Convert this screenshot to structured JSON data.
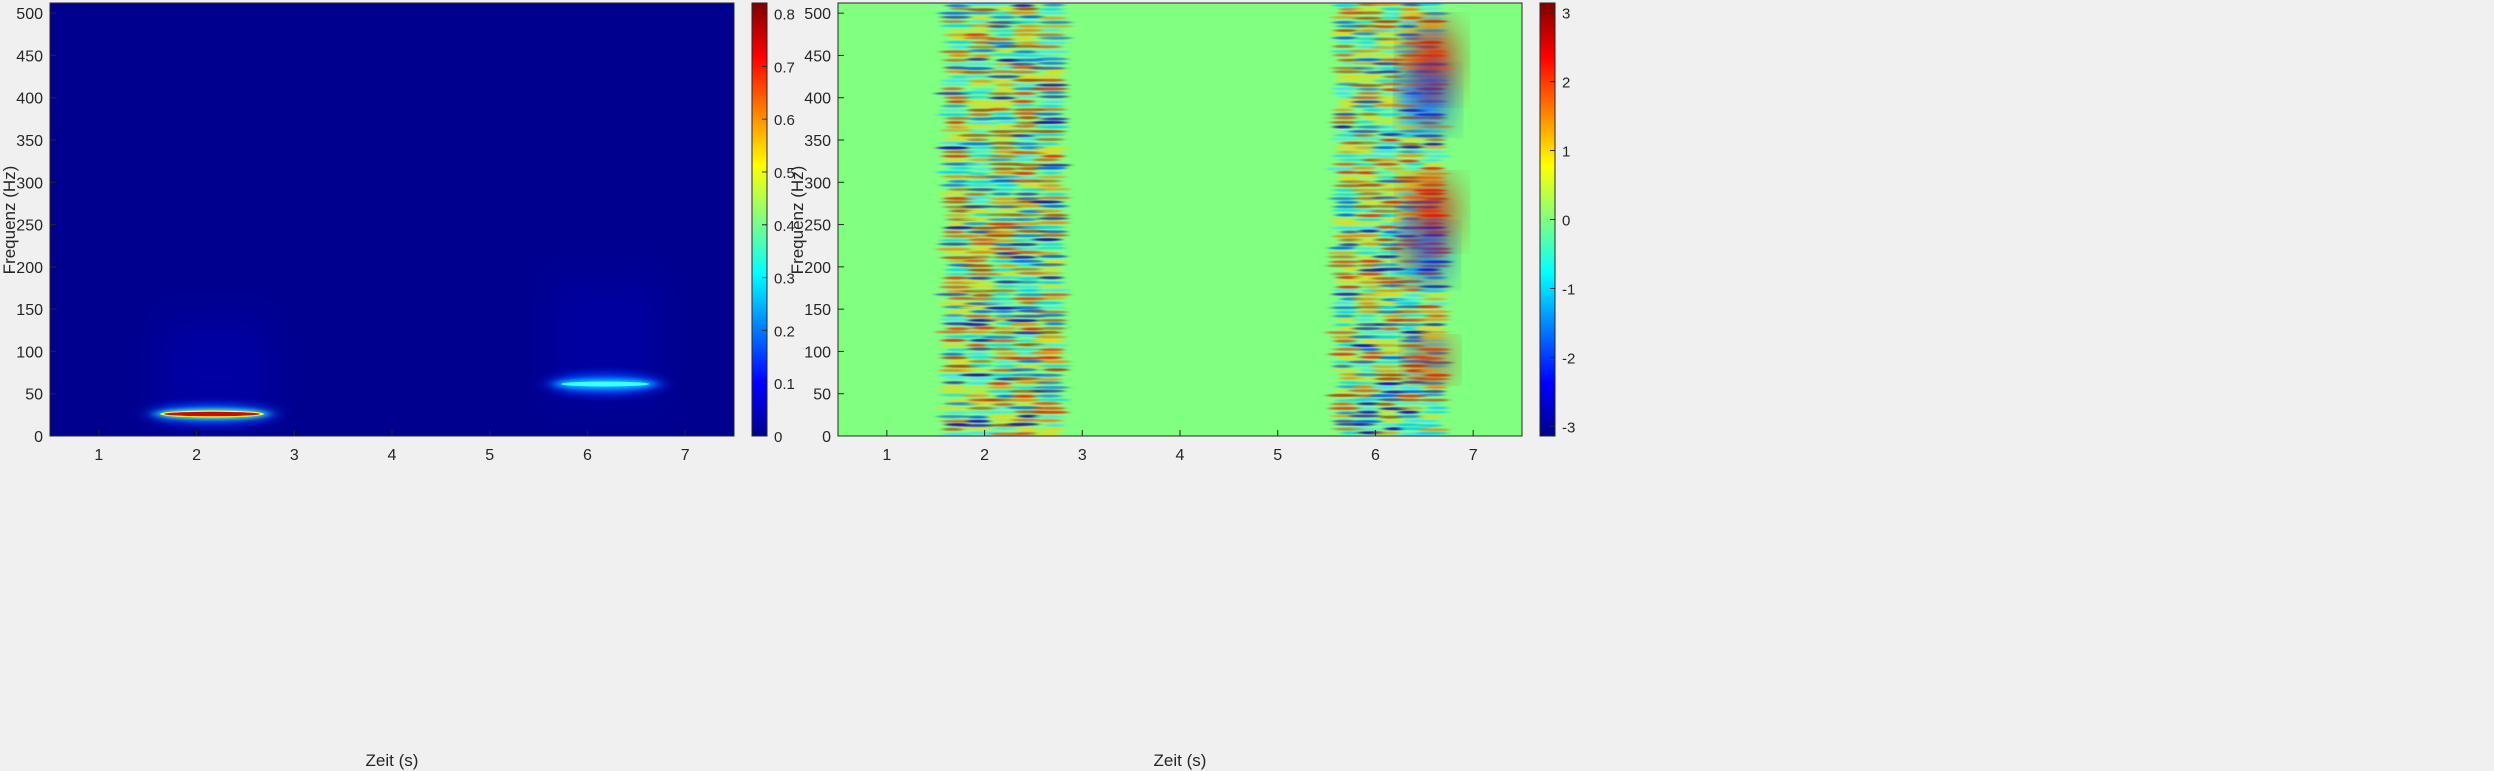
{
  "chart_data": [
    {
      "type": "heatmap",
      "title": "",
      "xlabel": "Zeit (s)",
      "ylabel": "Frequenz (Hz)",
      "xlim": [
        0.5,
        7.5
      ],
      "ylim": [
        0,
        512
      ],
      "xticks": [
        1,
        2,
        3,
        4,
        5,
        6,
        7
      ],
      "yticks": [
        0,
        50,
        100,
        150,
        200,
        250,
        300,
        350,
        400,
        450,
        500
      ],
      "colormap": "jet",
      "background_value": 0,
      "colorbar": {
        "min": 0,
        "max": 0.82,
        "ticks": [
          0,
          0.1,
          0.2,
          0.3,
          0.4,
          0.5,
          0.6,
          0.7,
          0.8
        ]
      },
      "features": [
        {
          "t_start": 1.6,
          "t_end": 2.8,
          "freq": 28,
          "peak": 0.8
        },
        {
          "t_start": 5.6,
          "t_end": 6.7,
          "freq": 64,
          "peak": 0.35
        }
      ]
    },
    {
      "type": "heatmap",
      "title": "",
      "xlabel": "Zeit (s)",
      "ylabel": "Frequenz (Hz)",
      "xlim": [
        0.5,
        7.5
      ],
      "ylim": [
        0,
        512
      ],
      "xticks": [
        1,
        2,
        3,
        4,
        5,
        6,
        7
      ],
      "yticks": [
        0,
        50,
        100,
        150,
        200,
        250,
        300,
        350,
        400,
        450,
        500
      ],
      "colormap": "jet",
      "background_value": 0,
      "colorbar": {
        "min": -3.14,
        "max": 3.14,
        "ticks": [
          -3,
          -2,
          -1,
          0,
          1,
          2,
          3
        ]
      },
      "features": [
        {
          "t_start": 1.6,
          "t_end": 2.8,
          "pattern": "phase stripes"
        },
        {
          "t_start": 5.6,
          "t_end": 6.7,
          "pattern": "phase stripes"
        }
      ]
    }
  ]
}
